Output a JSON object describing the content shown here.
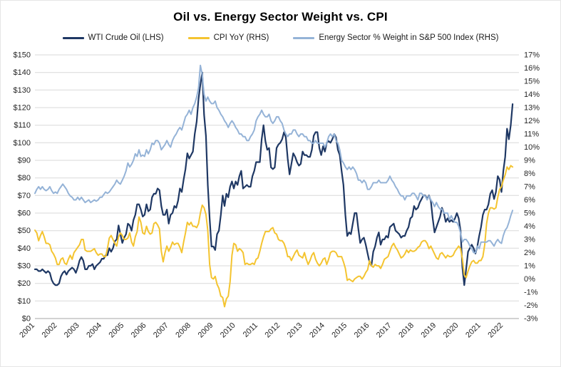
{
  "chart_data": {
    "type": "line",
    "title": "Oil vs. Energy Sector Weight vs. CPI",
    "grid": "horizontal",
    "legend_position": "top",
    "x_start_year": 2001,
    "x_points_per_year": 12,
    "x_axis": {
      "labels": [
        "2001",
        "2002",
        "2003",
        "2004",
        "2005",
        "2006",
        "2007",
        "2008",
        "2009",
        "2010",
        "2011",
        "2012",
        "2013",
        "2014",
        "2015",
        "2016",
        "2017",
        "2018",
        "2019",
        "2020",
        "2021",
        "2022"
      ],
      "tick_rotation": -45
    },
    "left_axis": {
      "min": 0,
      "max": 150,
      "step": 10,
      "labels": [
        "$0",
        "$10",
        "$20",
        "$30",
        "$40",
        "$50",
        "$60",
        "$70",
        "$80",
        "$90",
        "$100",
        "$110",
        "$120",
        "$130",
        "$140",
        "$150"
      ]
    },
    "right_axis": {
      "min": -3,
      "max": 17,
      "step": 1,
      "labels": [
        "-3%",
        "-2%",
        "-1%",
        "0%",
        "1%",
        "2%",
        "3%",
        "4%",
        "5%",
        "6%",
        "7%",
        "8%",
        "9%",
        "10%",
        "11%",
        "12%",
        "13%",
        "14%",
        "15%",
        "16%",
        "17%"
      ]
    },
    "colors": {
      "grid": "#d9d9d9",
      "axis_line": "#a6a6a6",
      "wti": "#1f3864",
      "cpi": "#f4c430",
      "energy": "#95b3d7"
    },
    "series": [
      {
        "name": "WTI Crude Oil (LHS)",
        "axis": "left",
        "color": "#1f3864",
        "stroke_width": 2.2,
        "values": [
          28,
          28,
          27,
          27,
          28,
          27,
          26,
          27,
          26,
          22,
          20,
          19,
          19,
          20,
          24,
          26,
          27,
          25,
          27,
          28,
          29,
          28,
          26,
          29,
          33,
          35,
          33,
          28,
          28,
          30,
          30,
          31,
          28,
          30,
          31,
          32,
          34,
          34,
          36,
          36,
          40,
          38,
          40,
          44,
          45,
          53,
          48,
          43,
          46,
          48,
          54,
          53,
          50,
          56,
          59,
          65,
          65,
          62,
          58,
          59,
          65,
          61,
          62,
          69,
          71,
          71,
          74,
          73,
          64,
          59,
          59,
          62,
          54,
          59,
          60,
          64,
          63,
          67,
          74,
          72,
          79,
          85,
          94,
          91,
          93,
          95,
          105,
          112,
          125,
          133,
          140,
          116,
          104,
          76,
          57,
          41,
          41,
          39,
          48,
          50,
          59,
          70,
          64,
          71,
          69,
          75,
          78,
          74,
          78,
          76,
          81,
          84,
          74,
          75,
          76,
          75,
          75,
          81,
          84,
          89,
          89,
          89,
          102,
          110,
          101,
          96,
          97,
          86,
          85,
          86,
          97,
          99,
          100,
          102,
          106,
          103,
          91,
          82,
          88,
          94,
          92,
          89,
          87,
          88,
          95,
          93,
          93,
          92,
          92,
          96,
          104,
          106,
          106,
          97,
          93,
          98,
          95,
          100,
          101,
          100,
          102,
          105,
          103,
          96,
          93,
          84,
          76,
          59,
          47,
          49,
          48,
          54,
          60,
          60,
          51,
          43,
          45,
          46,
          42,
          37,
          32,
          30,
          38,
          41,
          46,
          49,
          42,
          45,
          45,
          47,
          46,
          52,
          53,
          54,
          50,
          49,
          48,
          46,
          47,
          47,
          50,
          52,
          57,
          58,
          64,
          62,
          63,
          66,
          68,
          70,
          70,
          68,
          70,
          67,
          57,
          49,
          52,
          55,
          58,
          63,
          60,
          55,
          57,
          55,
          56,
          55,
          57,
          60,
          57,
          50,
          29,
          19,
          28,
          38,
          40,
          42,
          40,
          37,
          41,
          47,
          52,
          59,
          62,
          62,
          65,
          71,
          73,
          68,
          72,
          81,
          79,
          72,
          84,
          92,
          108,
          102,
          110,
          122
        ]
      },
      {
        "name": "CPI YoY (RHS)",
        "axis": "right",
        "color": "#f4c430",
        "stroke_width": 2,
        "values": [
          3.7,
          3.5,
          2.9,
          3.3,
          3.6,
          3.2,
          2.7,
          2.7,
          2.6,
          2.1,
          1.9,
          1.6,
          1.1,
          1.1,
          1.5,
          1.6,
          1.2,
          1.1,
          1.5,
          1.8,
          1.5,
          2.0,
          2.2,
          2.4,
          2.6,
          3.0,
          3.0,
          2.2,
          2.1,
          2.1,
          2.1,
          2.2,
          2.3,
          2.0,
          1.8,
          1.9,
          1.9,
          1.7,
          1.7,
          2.3,
          3.1,
          3.3,
          3.0,
          2.7,
          2.5,
          3.2,
          3.5,
          3.3,
          3.0,
          3.0,
          3.1,
          3.5,
          2.8,
          2.5,
          3.2,
          3.6,
          4.7,
          4.3,
          3.5,
          3.4,
          4.0,
          3.6,
          3.4,
          3.5,
          4.2,
          4.3,
          4.1,
          3.8,
          2.1,
          1.3,
          2.0,
          2.5,
          2.1,
          2.4,
          2.8,
          2.6,
          2.7,
          2.7,
          2.4,
          2.0,
          2.8,
          3.5,
          4.3,
          4.1,
          4.3,
          4.0,
          4.0,
          3.9,
          4.2,
          5.0,
          5.6,
          5.4,
          4.9,
          3.7,
          1.1,
          0.1,
          0.0,
          0.2,
          -0.4,
          -0.7,
          -1.3,
          -1.4,
          -2.1,
          -1.5,
          -1.3,
          -0.2,
          1.8,
          2.7,
          2.6,
          2.1,
          2.3,
          2.2,
          2.0,
          1.1,
          1.2,
          1.1,
          1.1,
          1.2,
          1.1,
          1.5,
          1.6,
          2.1,
          2.7,
          3.2,
          3.6,
          3.6,
          3.6,
          3.8,
          3.9,
          3.5,
          3.4,
          3.0,
          2.9,
          2.9,
          2.7,
          2.3,
          1.7,
          1.7,
          1.4,
          1.7,
          2.0,
          2.2,
          1.8,
          1.7,
          1.6,
          2.0,
          1.5,
          1.1,
          1.4,
          1.8,
          2.0,
          1.5,
          1.2,
          1.0,
          1.2,
          1.5,
          1.6,
          1.1,
          1.5,
          2.0,
          2.1,
          2.1,
          2.0,
          1.7,
          1.7,
          1.7,
          1.3,
          0.8,
          -0.1,
          0.0,
          -0.1,
          -0.2,
          0.0,
          0.1,
          0.2,
          0.2,
          0.0,
          0.2,
          0.5,
          0.7,
          1.4,
          1.0,
          0.9,
          1.1,
          1.0,
          1.0,
          0.8,
          1.1,
          1.5,
          1.6,
          1.7,
          2.1,
          2.5,
          2.7,
          2.4,
          2.2,
          1.9,
          1.6,
          1.7,
          1.9,
          2.2,
          2.0,
          2.2,
          2.1,
          2.1,
          2.2,
          2.4,
          2.5,
          2.8,
          2.9,
          2.9,
          2.7,
          2.3,
          2.5,
          2.2,
          1.9,
          1.6,
          1.5,
          1.9,
          2.0,
          1.8,
          1.6,
          1.8,
          1.7,
          1.7,
          1.8,
          2.1,
          2.3,
          2.5,
          2.3,
          1.5,
          0.3,
          0.1,
          0.6,
          1.0,
          1.3,
          1.4,
          1.2,
          1.2,
          1.4,
          1.4,
          1.7,
          2.6,
          4.2,
          5.0,
          5.4,
          5.4,
          5.3,
          5.4,
          6.2,
          6.8,
          7.0,
          7.5,
          7.9,
          8.5,
          8.3,
          8.6,
          8.5
        ]
      },
      {
        "name": "Energy Sector % Weight in S&P 500 Index (RHS)",
        "axis": "right",
        "color": "#95b3d7",
        "stroke_width": 2,
        "values": [
          6.5,
          6.8,
          7.0,
          6.8,
          7.0,
          6.8,
          6.7,
          6.8,
          7.0,
          6.7,
          6.5,
          6.6,
          6.5,
          6.8,
          7.0,
          7.2,
          7.0,
          6.8,
          6.5,
          6.3,
          6.2,
          6.0,
          6.0,
          6.2,
          6.0,
          6.2,
          6.0,
          5.8,
          5.9,
          6.0,
          5.8,
          5.9,
          6.0,
          5.9,
          6.0,
          6.2,
          6.2,
          6.4,
          6.6,
          6.5,
          6.6,
          6.8,
          7.0,
          7.2,
          7.5,
          7.3,
          7.2,
          7.5,
          7.8,
          8.2,
          8.8,
          8.5,
          8.7,
          9.0,
          9.5,
          9.3,
          9.8,
          9.3,
          9.4,
          9.3,
          9.8,
          9.5,
          9.8,
          10.3,
          10.2,
          10.5,
          10.5,
          10.3,
          9.8,
          10.0,
          10.2,
          10.5,
          10.2,
          10.0,
          10.5,
          10.8,
          11.0,
          11.3,
          11.5,
          11.3,
          11.8,
          12.3,
          12.5,
          12.8,
          12.5,
          13.0,
          13.3,
          13.8,
          14.5,
          16.2,
          15.5,
          14.0,
          13.5,
          13.8,
          13.5,
          13.3,
          13.3,
          13.5,
          13.0,
          12.8,
          12.5,
          12.3,
          12.0,
          11.8,
          11.5,
          11.8,
          12.0,
          11.8,
          11.5,
          11.3,
          11.0,
          11.0,
          10.8,
          10.8,
          10.5,
          10.5,
          10.8,
          11.0,
          11.3,
          12.0,
          12.3,
          12.5,
          12.8,
          12.5,
          12.3,
          12.3,
          12.5,
          12.0,
          11.8,
          12.0,
          12.3,
          12.3,
          12.0,
          11.8,
          11.3,
          11.0,
          10.8,
          11.0,
          11.0,
          11.3,
          11.3,
          11.0,
          10.8,
          11.0,
          11.0,
          10.8,
          10.8,
          10.5,
          10.5,
          10.3,
          10.3,
          10.5,
          10.3,
          10.3,
          10.3,
          10.3,
          10.0,
          10.3,
          10.8,
          11.0,
          10.8,
          11.0,
          10.5,
          10.3,
          9.8,
          9.0,
          8.8,
          8.5,
          8.3,
          8.5,
          8.3,
          8.5,
          8.3,
          8.0,
          7.5,
          7.5,
          7.3,
          7.5,
          7.3,
          6.8,
          6.8,
          7.0,
          7.3,
          7.3,
          7.3,
          7.5,
          7.3,
          7.3,
          7.3,
          7.3,
          7.5,
          7.8,
          7.5,
          7.3,
          7.0,
          6.8,
          6.5,
          6.3,
          6.3,
          6.0,
          6.3,
          6.3,
          6.3,
          6.5,
          6.5,
          6.3,
          6.0,
          6.5,
          6.5,
          6.3,
          6.3,
          6.0,
          6.3,
          6.0,
          5.8,
          5.5,
          5.8,
          5.5,
          5.3,
          5.3,
          5.0,
          5.0,
          5.0,
          4.5,
          4.8,
          4.5,
          4.3,
          4.3,
          4.0,
          3.5,
          2.8,
          3.0,
          3.0,
          2.8,
          2.5,
          2.3,
          2.0,
          2.0,
          2.5,
          2.3,
          2.8,
          2.8,
          2.8,
          2.8,
          2.9,
          2.9,
          2.7,
          2.5,
          2.8,
          3.0,
          2.8,
          2.7,
          3.3,
          3.7,
          3.9,
          4.3,
          4.8,
          5.2
        ]
      }
    ]
  }
}
